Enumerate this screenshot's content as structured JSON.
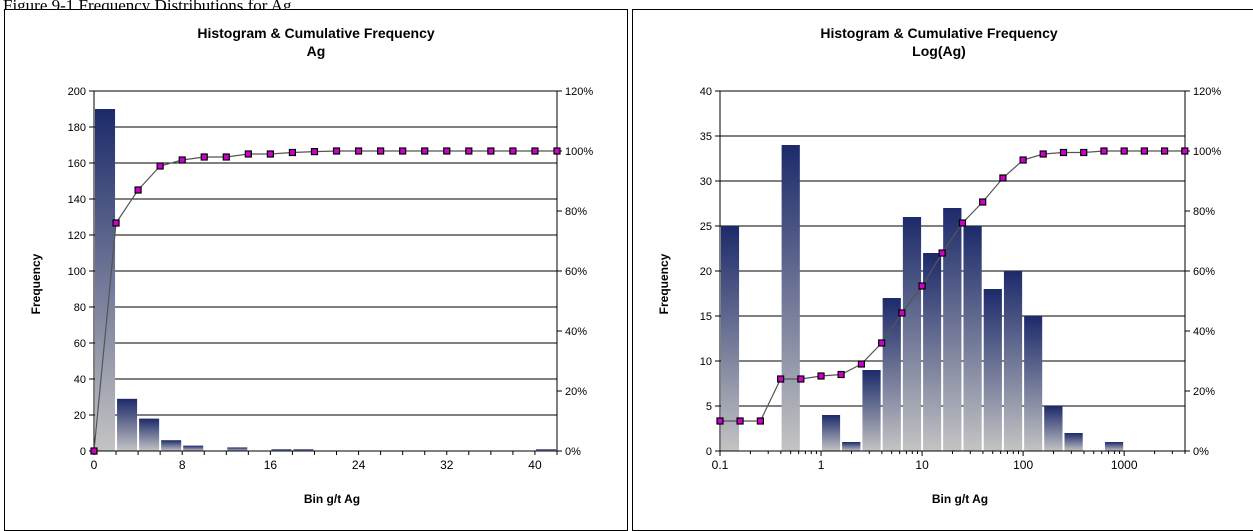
{
  "caption": "Figure 9-1 Frequency Distributions for Ag",
  "colors": {
    "bar_top": "#1c2a6a",
    "bar_bottom": "#c4c4c4",
    "line": "#555555",
    "marker": "#cc00cc",
    "grid": "#000000"
  },
  "chart_data": [
    {
      "type": "bar",
      "title": "Histogram & Cumulative Frequency",
      "subtitle": "Ag",
      "xlabel": "Bin g/t Ag",
      "ylabel": "Frequency",
      "x_scale": "linear",
      "xlim": [
        0,
        42
      ],
      "xticks": [
        "0",
        "8",
        "16",
        "24",
        "32",
        "40"
      ],
      "ylim": [
        0,
        200
      ],
      "yticks": [
        "0",
        "20",
        "40",
        "60",
        "80",
        "100",
        "120",
        "140",
        "160",
        "180",
        "200"
      ],
      "y2lim": [
        0,
        120
      ],
      "y2ticks": [
        "0%",
        "20%",
        "40%",
        "60%",
        "80%",
        "100%",
        "120%"
      ],
      "grid": true,
      "bin_width": 2,
      "bins": [
        2,
        4,
        6,
        8,
        10,
        12,
        14,
        16,
        18,
        20,
        22,
        24,
        26,
        28,
        30,
        32,
        34,
        36,
        38,
        40,
        42
      ],
      "frequency": [
        190,
        29,
        18,
        6,
        3,
        0,
        2,
        0,
        1,
        1,
        0,
        0,
        0,
        0,
        0,
        0,
        0,
        0,
        0,
        0,
        1
      ],
      "cumulative_x": [
        0,
        2,
        4,
        6,
        8,
        10,
        12,
        14,
        16,
        18,
        20,
        22,
        24,
        26,
        28,
        30,
        32,
        34,
        36,
        38,
        40,
        42
      ],
      "cumulative_pct": [
        0,
        76,
        87,
        95,
        97,
        98,
        98,
        99,
        99,
        99.5,
        99.8,
        100,
        100,
        100,
        100,
        100,
        100,
        100,
        100,
        100,
        100,
        100
      ]
    },
    {
      "type": "bar",
      "title": "Histogram & Cumulative Frequency",
      "subtitle": "Log(Ag)",
      "xlabel": "Bin g/t Ag",
      "ylabel": "Frequency",
      "x_scale": "log",
      "xlim": [
        0.1,
        4000
      ],
      "xticks": [
        "0.1",
        "1",
        "10",
        "100",
        "1000"
      ],
      "ylim": [
        0,
        40
      ],
      "yticks": [
        "0",
        "5",
        "10",
        "15",
        "20",
        "25",
        "30",
        "35",
        "40"
      ],
      "y2lim": [
        0,
        120
      ],
      "y2ticks": [
        "0%",
        "20%",
        "40%",
        "60%",
        "80%",
        "100%",
        "120%"
      ],
      "grid": true,
      "bins": [
        0.1,
        0.158,
        0.251,
        0.398,
        0.631,
        1,
        1.58,
        2.51,
        3.98,
        6.31,
        10,
        15.8,
        25.1,
        39.8,
        63.1,
        100,
        158,
        251,
        398,
        631,
        1000,
        1585,
        2512,
        3981
      ],
      "frequency": [
        25,
        0,
        0,
        34,
        0,
        4,
        1,
        9,
        17,
        26,
        22,
        27,
        25,
        18,
        20,
        15,
        5,
        2,
        0,
        1,
        0,
        0,
        0,
        0
      ],
      "cumulative_pct": [
        10,
        10,
        10,
        24,
        24,
        25,
        25.5,
        29,
        36,
        46,
        55,
        66,
        76,
        83,
        91,
        97,
        99,
        99.5,
        99.5,
        100,
        100,
        100,
        100,
        100
      ]
    }
  ]
}
